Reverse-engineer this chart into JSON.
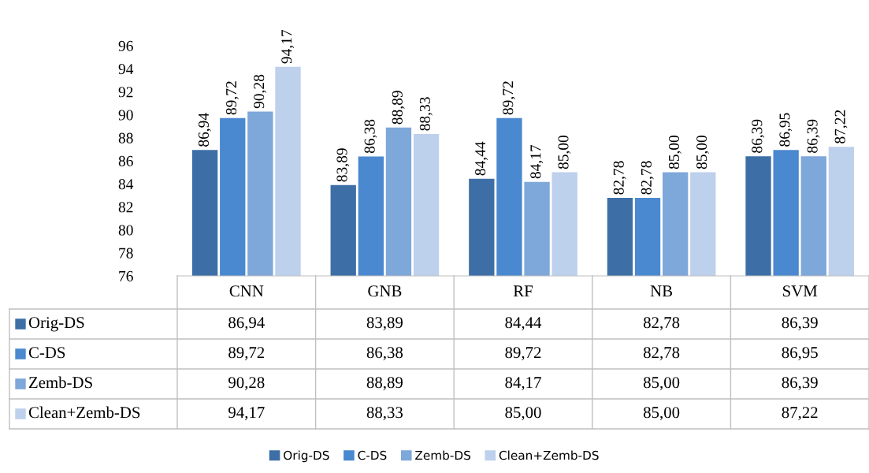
{
  "chart_data": {
    "type": "bar",
    "categories": [
      "CNN",
      "GNB",
      "RF",
      "NB",
      "SVM"
    ],
    "series": [
      {
        "name": "Orig-DS",
        "color": "#3d6fa6",
        "values": [
          86.94,
          83.89,
          84.44,
          82.78,
          86.39
        ],
        "value_labels": [
          "86,94",
          "83,89",
          "84,44",
          "82,78",
          "86,39"
        ]
      },
      {
        "name": "C-DS",
        "color": "#4a88cf",
        "values": [
          89.72,
          86.38,
          89.72,
          82.78,
          86.95
        ],
        "value_labels": [
          "89,72",
          "86,38",
          "89,72",
          "82,78",
          "86,95"
        ]
      },
      {
        "name": "Zemb-DS",
        "color": "#7ea7da",
        "values": [
          90.28,
          88.89,
          84.17,
          85.0,
          86.39
        ],
        "value_labels": [
          "90,28",
          "88,89",
          "84,17",
          "85,00",
          "86,39"
        ]
      },
      {
        "name": "Clean+Zemb-DS",
        "color": "#bdd0ec",
        "values": [
          94.17,
          88.33,
          85.0,
          85.0,
          87.22
        ],
        "value_labels": [
          "94,17",
          "88,33",
          "85,00",
          "85,00",
          "87,22"
        ]
      }
    ],
    "ylim": [
      76,
      96
    ],
    "yticks": [
      76,
      78,
      80,
      82,
      84,
      86,
      88,
      90,
      92,
      94,
      96
    ],
    "grid": false,
    "legend": "bottom"
  }
}
